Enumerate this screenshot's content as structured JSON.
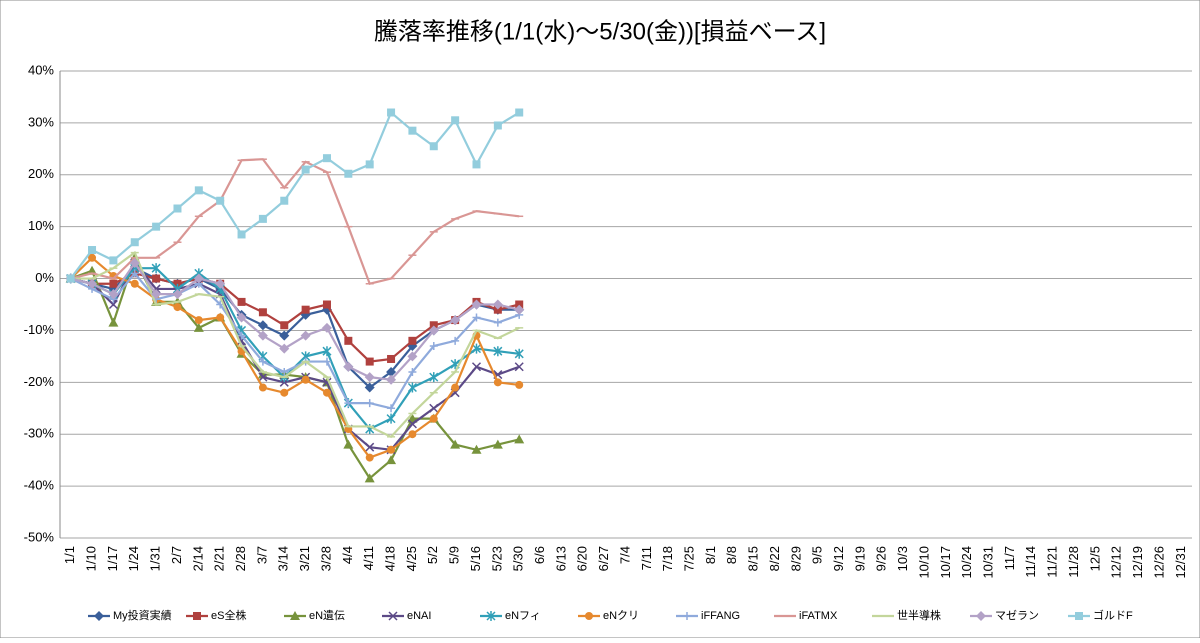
{
  "chart_data": {
    "type": "line",
    "title": "騰落率推移(1/1(水)～5/30(金))[損益ベース]",
    "categories": [
      "1/1",
      "1/10",
      "1/17",
      "1/24",
      "1/31",
      "2/7",
      "2/14",
      "2/21",
      "2/28",
      "3/7",
      "3/14",
      "3/21",
      "3/28",
      "4/4",
      "4/11",
      "4/18",
      "4/25",
      "5/2",
      "5/9",
      "5/16",
      "5/23",
      "5/30",
      "6/6",
      "6/13",
      "6/20",
      "6/27",
      "7/4",
      "7/11",
      "7/18",
      "7/25",
      "8/1",
      "8/8",
      "8/15",
      "8/22",
      "8/29",
      "9/5",
      "9/12",
      "9/19",
      "9/26",
      "10/3",
      "10/10",
      "10/17",
      "10/24",
      "10/31",
      "11/7",
      "11/14",
      "11/21",
      "11/28",
      "12/5",
      "12/12",
      "12/19",
      "12/26",
      "12/31"
    ],
    "ylim": [
      -50,
      40
    ],
    "yticks": [
      {
        "value": 40,
        "label": "40%"
      },
      {
        "value": 30,
        "label": "30%"
      },
      {
        "value": 20,
        "label": "20%"
      },
      {
        "value": 10,
        "label": "10%"
      },
      {
        "value": 0,
        "label": "0%"
      },
      {
        "value": -10,
        "label": "-10%"
      },
      {
        "value": -20,
        "label": "-20%"
      },
      {
        "value": -30,
        "label": "-30%"
      },
      {
        "value": -40,
        "label": "-40%"
      },
      {
        "value": -50,
        "label": "-50%"
      }
    ],
    "grid": true,
    "legend": "bottom",
    "series": [
      {
        "name": "My投資実績",
        "color": "#3a5f9a",
        "marker": "diamond",
        "values": [
          0,
          -1,
          -2,
          2,
          0,
          -1,
          0,
          -2,
          -7,
          -9,
          -11,
          -7,
          -6,
          -17,
          -21,
          -18,
          -13,
          -10,
          -8,
          -5,
          -6,
          -6,
          null,
          null,
          null,
          null,
          null,
          null,
          null,
          null,
          null,
          null,
          null,
          null,
          null,
          null,
          null,
          null,
          null,
          null,
          null,
          null,
          null,
          null,
          null,
          null,
          null,
          null,
          null,
          null,
          null,
          null,
          null
        ]
      },
      {
        "name": "eS全株",
        "color": "#b0413e",
        "marker": "square",
        "values": [
          0,
          -1,
          -1,
          1,
          0,
          -1,
          0,
          -1,
          -4.5,
          -6.5,
          -9,
          -6,
          -5,
          -12,
          -16,
          -15.5,
          -12,
          -9,
          -8,
          -4.5,
          -6,
          -5,
          null,
          null,
          null,
          null,
          null,
          null,
          null,
          null,
          null,
          null,
          null,
          null,
          null,
          null,
          null,
          null,
          null,
          null,
          null,
          null,
          null,
          null,
          null,
          null,
          null,
          null,
          null,
          null,
          null,
          null,
          null
        ]
      },
      {
        "name": "eN遺伝",
        "color": "#77933c",
        "marker": "triangle",
        "values": [
          0,
          1.5,
          -8.5,
          4,
          -4.5,
          -4.5,
          -9.5,
          -7.5,
          -14.5,
          -18.5,
          -18.5,
          -19,
          -20,
          -32,
          -38.5,
          -35,
          -27,
          -27,
          -32,
          -33,
          -32,
          -31,
          null,
          null,
          null,
          null,
          null,
          null,
          null,
          null,
          null,
          null,
          null,
          null,
          null,
          null,
          null,
          null,
          null,
          null,
          null,
          null,
          null,
          null,
          null,
          null,
          null,
          null,
          null,
          null,
          null,
          null,
          null
        ]
      },
      {
        "name": "eNAI",
        "color": "#5c4a87",
        "marker": "x",
        "values": [
          0,
          -1,
          -5,
          3,
          -2,
          -2,
          -1,
          -3,
          -12,
          -19,
          -20,
          -19,
          -20,
          -29,
          -32.5,
          -33,
          -28,
          -25,
          -22,
          -17,
          -18.5,
          -17,
          null,
          null,
          null,
          null,
          null,
          null,
          null,
          null,
          null,
          null,
          null,
          null,
          null,
          null,
          null,
          null,
          null,
          null,
          null,
          null,
          null,
          null,
          null,
          null,
          null,
          null,
          null,
          null,
          null,
          null,
          null
        ]
      },
      {
        "name": "eNフィ",
        "color": "#31a0b8",
        "marker": "asterisk",
        "values": [
          0,
          -1,
          -3,
          2,
          2,
          -2,
          1,
          -2,
          -10,
          -15,
          -19,
          -15,
          -14,
          -24,
          -29,
          -27,
          -21,
          -19,
          -16.5,
          -13.5,
          -14,
          -14.5,
          null,
          null,
          null,
          null,
          null,
          null,
          null,
          null,
          null,
          null,
          null,
          null,
          null,
          null,
          null,
          null,
          null,
          null,
          null,
          null,
          null,
          null,
          null,
          null,
          null,
          null,
          null,
          null,
          null,
          null,
          null
        ]
      },
      {
        "name": "eNクリ",
        "color": "#e6892e",
        "marker": "circle",
        "values": [
          0,
          4,
          0.5,
          -1,
          -4,
          -5.5,
          -8,
          -7.5,
          -14,
          -21,
          -22,
          -19.5,
          -22,
          -29,
          -34.5,
          -33,
          -30,
          -27,
          -21,
          -11,
          -20,
          -20.5,
          null,
          null,
          null,
          null,
          null,
          null,
          null,
          null,
          null,
          null,
          null,
          null,
          null,
          null,
          null,
          null,
          null,
          null,
          null,
          null,
          null,
          null,
          null,
          null,
          null,
          null,
          null,
          null,
          null,
          null,
          null
        ]
      },
      {
        "name": "iFFANG",
        "color": "#8faadc",
        "marker": "plus",
        "values": [
          0,
          -2,
          -4,
          1,
          -4,
          -3,
          -1,
          -5,
          -11,
          -16,
          -18,
          -16,
          -16,
          -24,
          -24,
          -25,
          -18,
          -13,
          -12,
          -7.5,
          -8.5,
          -7,
          null,
          null,
          null,
          null,
          null,
          null,
          null,
          null,
          null,
          null,
          null,
          null,
          null,
          null,
          null,
          null,
          null,
          null,
          null,
          null,
          null,
          null,
          null,
          null,
          null,
          null,
          null,
          null,
          null,
          null,
          null
        ]
      },
      {
        "name": "iFATMX",
        "color": "#d99694",
        "marker": "dash",
        "values": [
          0,
          1,
          0,
          4,
          4,
          7,
          12,
          15,
          22.8,
          23,
          17.5,
          22.5,
          20.5,
          10,
          -1,
          0,
          4.5,
          9,
          11.5,
          13,
          12.5,
          12,
          null,
          null,
          null,
          null,
          null,
          null,
          null,
          null,
          null,
          null,
          null,
          null,
          null,
          null,
          null,
          null,
          null,
          null,
          null,
          null,
          null,
          null,
          null,
          null,
          null,
          null,
          null,
          null,
          null,
          null,
          null
        ]
      },
      {
        "name": "世半導株",
        "color": "#c3d69b",
        "marker": "dash",
        "values": [
          0,
          0,
          2,
          5,
          -5,
          -4.5,
          -3,
          -3.5,
          -13,
          -18,
          -19,
          -16,
          -19,
          -28.5,
          -28.5,
          -30.5,
          -26,
          -22,
          -18,
          -10,
          -11.5,
          -9.5,
          null,
          null,
          null,
          null,
          null,
          null,
          null,
          null,
          null,
          null,
          null,
          null,
          null,
          null,
          null,
          null,
          null,
          null,
          null,
          null,
          null,
          null,
          null,
          null,
          null,
          null,
          null,
          null,
          null,
          null,
          null
        ]
      },
      {
        "name": "マゼラン",
        "color": "#b3a2c7",
        "marker": "diamond",
        "values": [
          0,
          -1,
          -3,
          3,
          -3,
          -3,
          0,
          -1,
          -7.5,
          -11,
          -13.5,
          -11,
          -9.5,
          -17,
          -19,
          -19.5,
          -15,
          -10,
          -8,
          -5,
          -5,
          -6,
          null,
          null,
          null,
          null,
          null,
          null,
          null,
          null,
          null,
          null,
          null,
          null,
          null,
          null,
          null,
          null,
          null,
          null,
          null,
          null,
          null,
          null,
          null,
          null,
          null,
          null,
          null,
          null,
          null,
          null,
          null
        ]
      },
      {
        "name": "ゴルドF",
        "color": "#93cddd",
        "marker": "square",
        "values": [
          0,
          5.5,
          3.5,
          7,
          10,
          13.5,
          17,
          15,
          8.5,
          11.5,
          15,
          21,
          23.2,
          20.2,
          22,
          32,
          28.5,
          25.5,
          30.5,
          22,
          29.5,
          32,
          null,
          null,
          null,
          null,
          null,
          null,
          null,
          null,
          null,
          null,
          null,
          null,
          null,
          null,
          null,
          null,
          null,
          null,
          null,
          null,
          null,
          null,
          null,
          null,
          null,
          null,
          null,
          null,
          null,
          null,
          null
        ]
      }
    ]
  }
}
